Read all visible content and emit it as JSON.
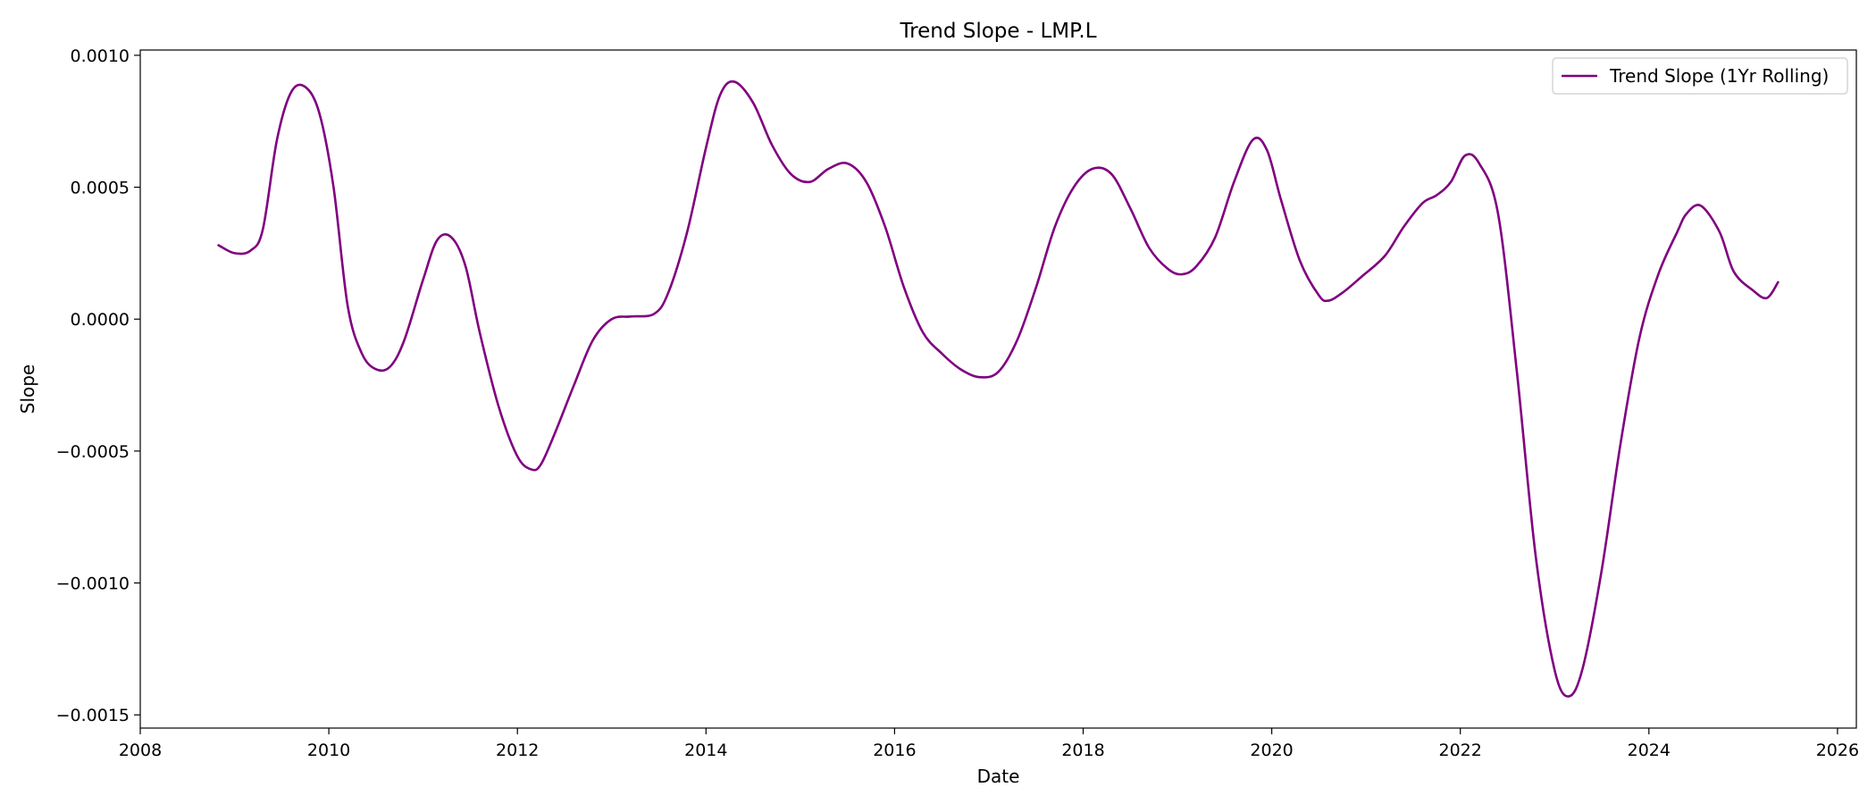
{
  "chart_data": {
    "type": "line",
    "title": "Trend Slope - LMP.L",
    "xlabel": "Date",
    "ylabel": "Slope",
    "xlim": [
      2008.0,
      2026.2
    ],
    "ylim": [
      -0.00155,
      0.00102
    ],
    "x_ticks": [
      2008,
      2010,
      2012,
      2014,
      2016,
      2018,
      2020,
      2022,
      2024,
      2026
    ],
    "x_tick_labels": [
      "2008",
      "2010",
      "2012",
      "2014",
      "2016",
      "2018",
      "2020",
      "2022",
      "2024",
      "2026"
    ],
    "y_ticks": [
      0.001,
      0.0005,
      0.0,
      -0.0005,
      -0.001,
      -0.0015
    ],
    "y_tick_labels": [
      "0.0010",
      "0.0005",
      "0.0000",
      "−0.0005",
      "−0.0010",
      "−0.0015"
    ],
    "grid": false,
    "legend_position": "top-right",
    "series": [
      {
        "name": "Trend Slope (1Yr Rolling)",
        "color": "#800080",
        "x": [
          2008.83,
          2009.0,
          2009.17,
          2009.3,
          2009.45,
          2009.6,
          2009.75,
          2009.9,
          2010.05,
          2010.2,
          2010.35,
          2010.5,
          2010.65,
          2010.8,
          2011.0,
          2011.15,
          2011.3,
          2011.45,
          2011.6,
          2011.8,
          2012.0,
          2012.15,
          2012.25,
          2012.4,
          2012.6,
          2012.8,
          2013.0,
          2013.2,
          2013.45,
          2013.6,
          2013.8,
          2014.0,
          2014.15,
          2014.3,
          2014.5,
          2014.7,
          2014.9,
          2015.1,
          2015.3,
          2015.5,
          2015.7,
          2015.9,
          2016.1,
          2016.3,
          2016.5,
          2016.7,
          2016.9,
          2017.1,
          2017.3,
          2017.5,
          2017.7,
          2017.9,
          2018.1,
          2018.3,
          2018.5,
          2018.7,
          2018.9,
          2019.05,
          2019.2,
          2019.4,
          2019.6,
          2019.8,
          2019.95,
          2020.1,
          2020.3,
          2020.5,
          2020.6,
          2020.75,
          2020.95,
          2021.2,
          2021.4,
          2021.6,
          2021.75,
          2021.9,
          2022.05,
          2022.2,
          2022.4,
          2022.6,
          2022.8,
          2023.0,
          2023.15,
          2023.3,
          2023.5,
          2023.7,
          2023.9,
          2024.1,
          2024.3,
          2024.4,
          2024.55,
          2024.75,
          2024.9,
          2025.1,
          2025.25,
          2025.37
        ],
        "values": [
          0.00028,
          0.00025,
          0.00026,
          0.00034,
          0.00068,
          0.00086,
          0.00088,
          0.00078,
          0.0005,
          5e-05,
          -0.00013,
          -0.00019,
          -0.00018,
          -8e-05,
          0.00015,
          0.0003,
          0.00031,
          0.0002,
          -5e-05,
          -0.00033,
          -0.00052,
          -0.00057,
          -0.00055,
          -0.00043,
          -0.00025,
          -8e-05,
          0.0,
          1e-05,
          2e-05,
          0.0001,
          0.00033,
          0.00065,
          0.00085,
          0.0009,
          0.00082,
          0.00066,
          0.00055,
          0.00052,
          0.00057,
          0.00059,
          0.00052,
          0.00035,
          0.00012,
          -5e-05,
          -0.00013,
          -0.00019,
          -0.00022,
          -0.0002,
          -8e-05,
          0.00012,
          0.00035,
          0.0005,
          0.00057,
          0.00055,
          0.00042,
          0.00027,
          0.00019,
          0.00017,
          0.0002,
          0.00031,
          0.00052,
          0.00068,
          0.00064,
          0.00045,
          0.00022,
          9e-05,
          7e-05,
          0.0001,
          0.00016,
          0.00024,
          0.00035,
          0.00044,
          0.00047,
          0.00052,
          0.00062,
          0.00059,
          0.0004,
          -0.0002,
          -0.0009,
          -0.00133,
          -0.00143,
          -0.00132,
          -0.00095,
          -0.00047,
          -7e-05,
          0.00017,
          0.00033,
          0.0004,
          0.00043,
          0.00033,
          0.00018,
          0.00011,
          8e-05,
          0.00014
        ]
      }
    ]
  }
}
